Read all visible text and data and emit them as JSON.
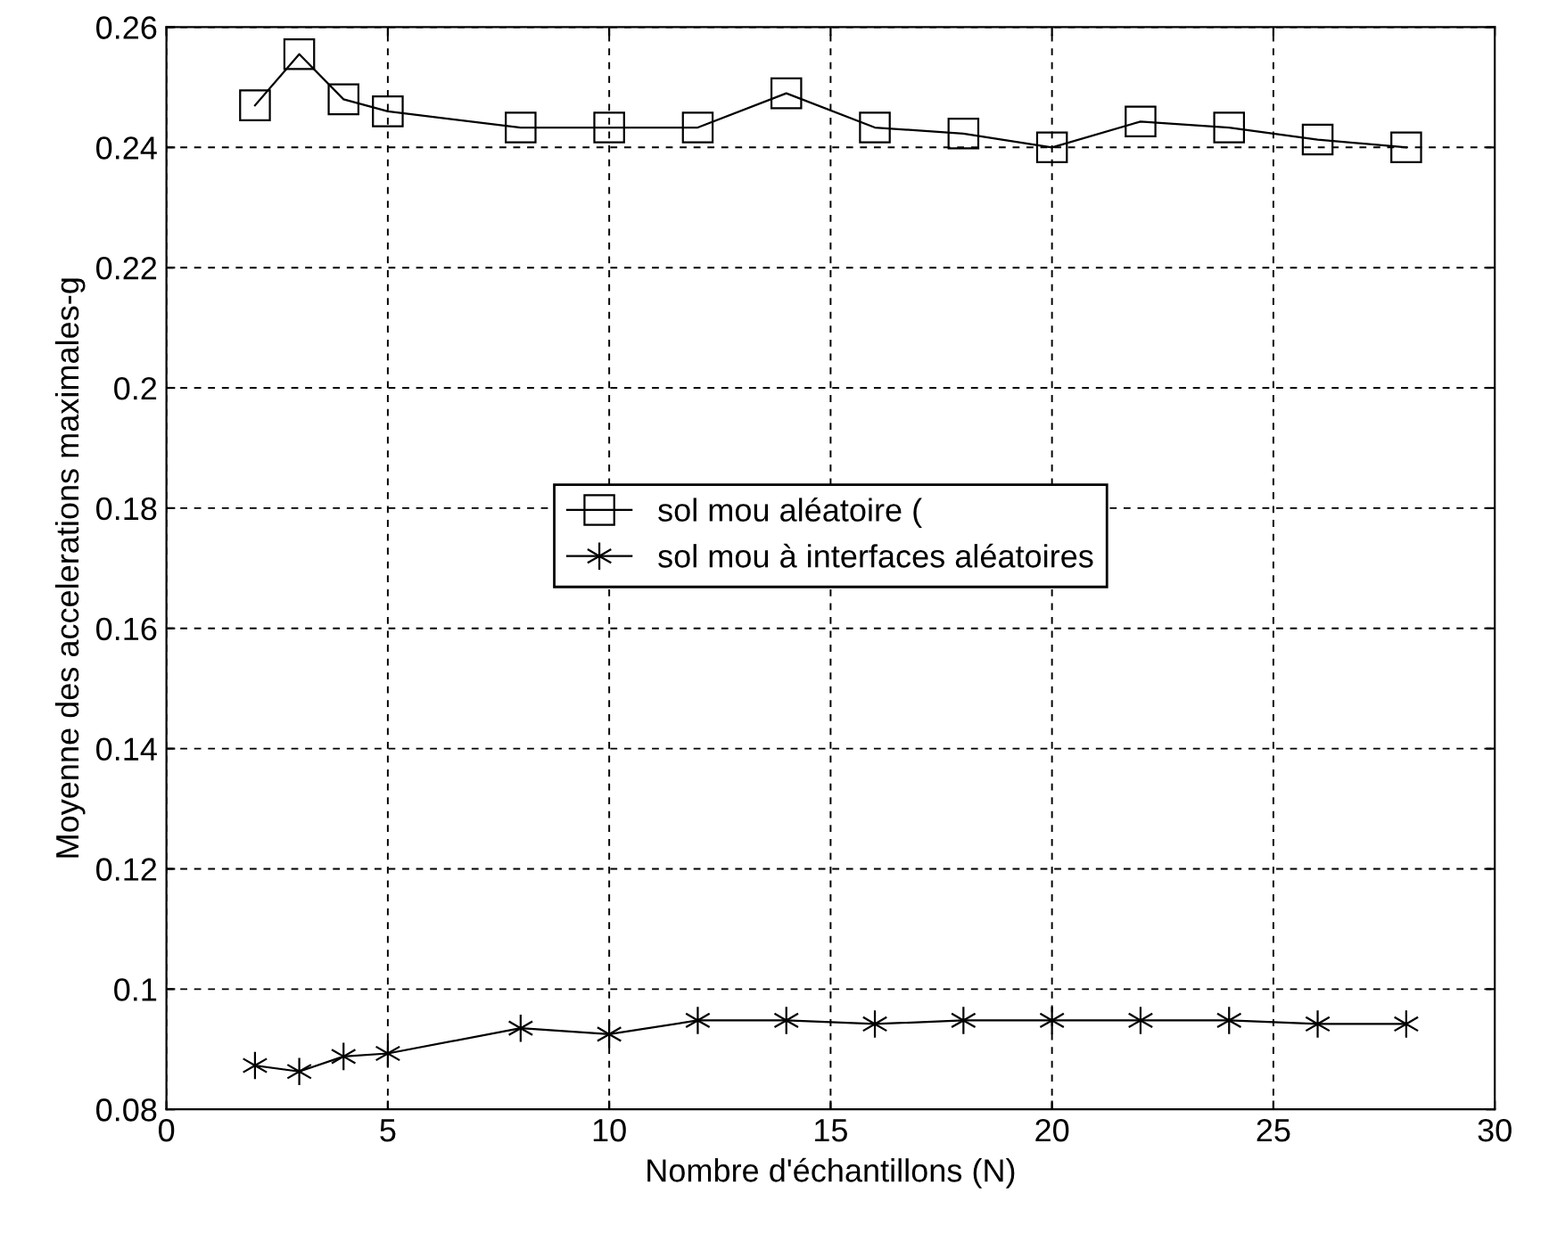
{
  "chart_data": {
    "type": "line",
    "xlabel": "Nombre d'échantillons (N)",
    "ylabel": "Moyenne des accelerations maximales-g",
    "x": [
      2,
      3,
      4,
      5,
      8,
      10,
      12,
      14,
      16,
      18,
      20,
      22,
      24,
      26,
      28
    ],
    "series": [
      {
        "name": "sol mou aléatoire (",
        "color": "#000000",
        "marker": "square",
        "values": [
          0.247,
          0.2555,
          0.248,
          0.246,
          0.2433,
          0.2433,
          0.2433,
          0.249,
          0.2433,
          0.2423,
          0.24,
          0.2443,
          0.2433,
          0.2413,
          0.24
        ]
      },
      {
        "name": "sol mou à interfaces aléatoires",
        "color": "#000000",
        "marker": "cross",
        "values": [
          0.0873,
          0.0863,
          0.0888,
          0.0893,
          0.0935,
          0.0925,
          0.0948,
          0.0948,
          0.0942,
          0.0948,
          0.0948,
          0.0948,
          0.0948,
          0.0942,
          0.0942
        ]
      }
    ],
    "xlim": [
      0,
      30
    ],
    "xticks": [
      0,
      5,
      10,
      15,
      20,
      25,
      30
    ],
    "ylim": [
      0.08,
      0.26
    ],
    "yticks": [
      0.08,
      0.1,
      0.12,
      0.14,
      0.16,
      0.18,
      0.2,
      0.22,
      0.24,
      0.26
    ],
    "grid": true,
    "legend": "center",
    "line_style": "solid"
  }
}
